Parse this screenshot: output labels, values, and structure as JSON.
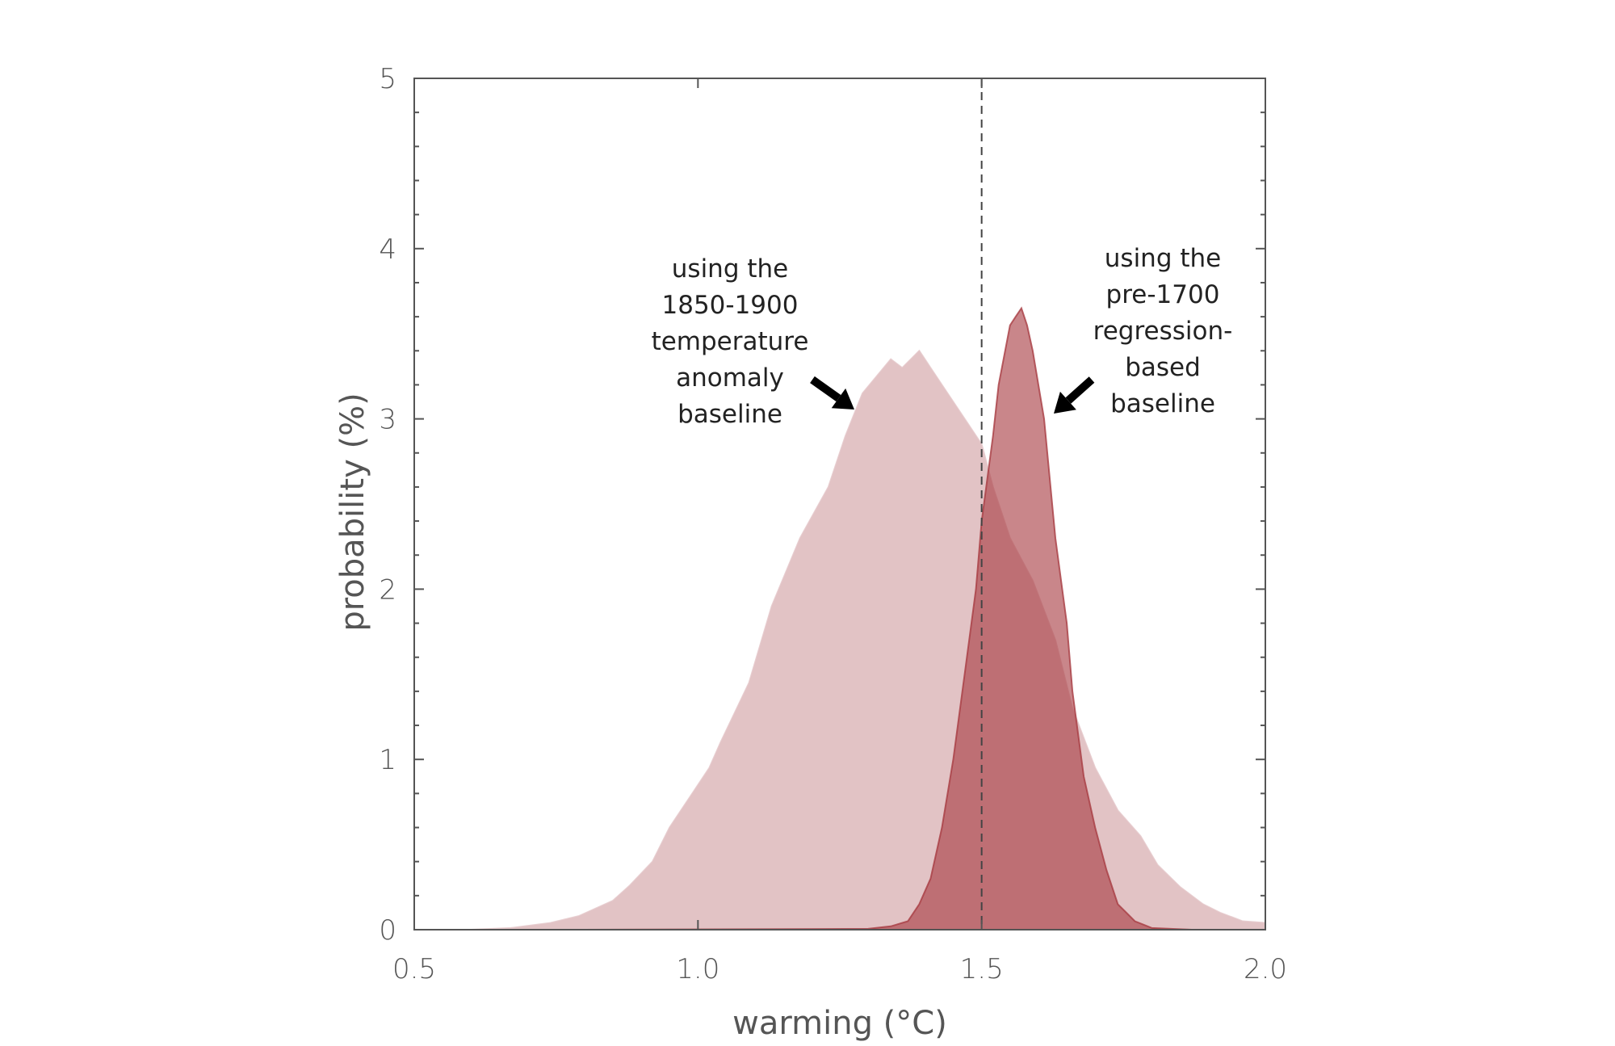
{
  "chart_data": {
    "type": "area",
    "title": "",
    "xlabel": "warming (°C)",
    "ylabel": "probability (%)",
    "xlim": [
      0.5,
      2.0
    ],
    "ylim": [
      0,
      5
    ],
    "xticks": [
      "0.5",
      "1.0",
      "1.5",
      "2.0"
    ],
    "yticks": [
      "0",
      "1",
      "2",
      "3",
      "4",
      "5"
    ],
    "grid": false,
    "reference_line": {
      "x": 1.5,
      "style": "dashed"
    },
    "series": [
      {
        "color": "#e2c3c5",
        "x": [
          0.5,
          0.6,
          0.67,
          0.74,
          0.79,
          0.85,
          0.88,
          0.92,
          0.95,
          0.99,
          1.02,
          1.04,
          1.09,
          1.13,
          1.18,
          1.23,
          1.26,
          1.29,
          1.34,
          1.36,
          1.39,
          1.41,
          1.44,
          1.47,
          1.5,
          1.52,
          1.55,
          1.59,
          1.63,
          1.66,
          1.7,
          1.74,
          1.78,
          1.81,
          1.85,
          1.89,
          1.92,
          1.96,
          2.0
        ],
        "y": [
          0,
          0,
          0.01,
          0.04,
          0.08,
          0.17,
          0.26,
          0.4,
          0.6,
          0.8,
          0.95,
          1.1,
          1.45,
          1.9,
          2.3,
          2.6,
          2.9,
          3.15,
          3.35,
          3.3,
          3.4,
          3.3,
          3.15,
          3.0,
          2.85,
          2.6,
          2.3,
          2.05,
          1.7,
          1.3,
          0.95,
          0.7,
          0.55,
          0.38,
          0.25,
          0.15,
          0.1,
          0.05,
          0.04
        ]
      },
      {
        "color": "#a83c42",
        "x": [
          0.8,
          1.3,
          1.34,
          1.37,
          1.39,
          1.41,
          1.43,
          1.45,
          1.47,
          1.49,
          1.5,
          1.52,
          1.53,
          1.55,
          1.56,
          1.57,
          1.58,
          1.59,
          1.61,
          1.63,
          1.65,
          1.66,
          1.68,
          1.7,
          1.72,
          1.74,
          1.77,
          1.8,
          1.87,
          2.0
        ],
        "y": [
          0,
          0.005,
          0.02,
          0.05,
          0.15,
          0.3,
          0.6,
          1.0,
          1.5,
          2.0,
          2.4,
          2.9,
          3.2,
          3.55,
          3.6,
          3.65,
          3.55,
          3.4,
          3.0,
          2.3,
          1.8,
          1.4,
          0.9,
          0.6,
          0.35,
          0.15,
          0.05,
          0.01,
          0,
          0
        ]
      }
    ],
    "annotations": [
      {
        "lines": [
          "using the",
          "1850-1900",
          "temperature",
          "anomaly",
          "baseline"
        ]
      },
      {
        "lines": [
          "using the",
          "pre-1700",
          "regression-",
          "based",
          "baseline"
        ]
      }
    ]
  }
}
